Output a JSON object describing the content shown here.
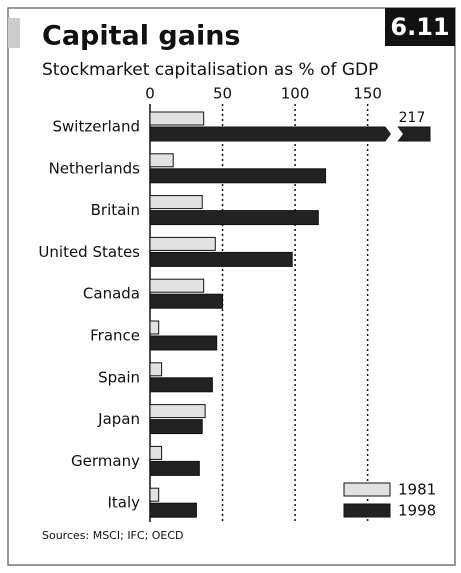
{
  "chart_data": {
    "type": "bar",
    "orientation": "horizontal",
    "title": "Capital gains",
    "subtitle": "Stockmarket capitalisation as % of GDP",
    "badge": "6.11",
    "source": "Sources: MSCI; IFC; OECD",
    "categories": [
      "Switzerland",
      "Netherlands",
      "Britain",
      "United States",
      "Canada",
      "France",
      "Spain",
      "Japan",
      "Germany",
      "Italy"
    ],
    "series": [
      {
        "name": "1981",
        "color": "#e2e2e2",
        "values": [
          37,
          16,
          36,
          45,
          37,
          6,
          8,
          38,
          8,
          6
        ]
      },
      {
        "name": "1998",
        "color": "#222222",
        "values": [
          217,
          121,
          116,
          98,
          50,
          46,
          43,
          36,
          34,
          32
        ]
      }
    ],
    "xlim": [
      0,
      193
    ],
    "xticks": [
      0,
      50,
      100,
      150
    ],
    "grid": true,
    "legend": "bottom right"
  }
}
